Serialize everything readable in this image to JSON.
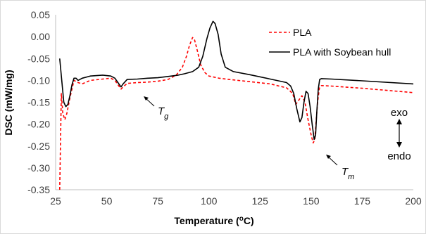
{
  "chart_data": {
    "type": "line",
    "title": "",
    "xlabel": "Temperature (ᵒC)",
    "xlabel_main": "Temperature (",
    "xlabel_sup": "o",
    "xlabel_tail": "C)",
    "ylabel": "DSC (mW/mg)",
    "xlim": [
      25,
      200
    ],
    "ylim": [
      -0.35,
      0.05
    ],
    "x_ticks": [
      "25",
      "50",
      "75",
      "100",
      "125",
      "150",
      "175",
      "200"
    ],
    "y_ticks": [
      "0.05",
      "0.00",
      "-0.05",
      "-0.10",
      "-0.15",
      "-0.20",
      "-0.25",
      "-0.30",
      "-0.35"
    ],
    "grid": false,
    "legend_position": "top-right",
    "series": [
      {
        "name": "PLA",
        "color": "#ff0000",
        "style": "dashed",
        "x": [
          27,
          27.8,
          28.5,
          29.5,
          30.5,
          32,
          34,
          36,
          38,
          42,
          48,
          52,
          54,
          55.5,
          57,
          58,
          60,
          65,
          70,
          75,
          80,
          84,
          87,
          89,
          90.5,
          92,
          93,
          94.5,
          96,
          98,
          100,
          105,
          110,
          120,
          130,
          138,
          141,
          142.5,
          144,
          145.5,
          147,
          148.5,
          150,
          151,
          151.8,
          152.5,
          153.2,
          154,
          155,
          160,
          175,
          200
        ],
        "y": [
          -0.35,
          -0.13,
          -0.175,
          -0.19,
          -0.175,
          -0.14,
          -0.1,
          -0.105,
          -0.108,
          -0.1,
          -0.097,
          -0.095,
          -0.1,
          -0.11,
          -0.12,
          -0.115,
          -0.107,
          -0.105,
          -0.104,
          -0.102,
          -0.098,
          -0.088,
          -0.07,
          -0.045,
          -0.02,
          -0.002,
          -0.008,
          -0.035,
          -0.065,
          -0.082,
          -0.09,
          -0.095,
          -0.098,
          -0.103,
          -0.108,
          -0.117,
          -0.13,
          -0.155,
          -0.145,
          -0.135,
          -0.15,
          -0.19,
          -0.225,
          -0.243,
          -0.235,
          -0.19,
          -0.15,
          -0.118,
          -0.112,
          -0.113,
          -0.118,
          -0.128
        ]
      },
      {
        "name": "PLA with Soybean hull",
        "color": "#000000",
        "style": "solid",
        "x": [
          27,
          28,
          29,
          30,
          31,
          32,
          33,
          34,
          35,
          36,
          38,
          42,
          48,
          52,
          54,
          55.5,
          57,
          58,
          60,
          65,
          70,
          75,
          80,
          85,
          88,
          92,
          95,
          97,
          99,
          100.5,
          102,
          103,
          104.5,
          106,
          108,
          112,
          120,
          130,
          138,
          140,
          141.5,
          143,
          144.5,
          145.5,
          146.5,
          147.5,
          148.5,
          149.5,
          150.5,
          151.5,
          152.2,
          152.8,
          153.5,
          154.2,
          155,
          160,
          175,
          200
        ],
        "y": [
          -0.05,
          -0.1,
          -0.15,
          -0.16,
          -0.155,
          -0.135,
          -0.11,
          -0.095,
          -0.095,
          -0.1,
          -0.095,
          -0.09,
          -0.088,
          -0.09,
          -0.095,
          -0.105,
          -0.115,
          -0.108,
          -0.098,
          -0.097,
          -0.095,
          -0.094,
          -0.091,
          -0.088,
          -0.085,
          -0.08,
          -0.07,
          -0.045,
          -0.005,
          0.02,
          0.035,
          0.03,
          0.005,
          -0.04,
          -0.07,
          -0.08,
          -0.087,
          -0.097,
          -0.105,
          -0.113,
          -0.13,
          -0.165,
          -0.195,
          -0.185,
          -0.15,
          -0.125,
          -0.13,
          -0.16,
          -0.2,
          -0.235,
          -0.225,
          -0.17,
          -0.12,
          -0.098,
          -0.096,
          -0.097,
          -0.101,
          -0.108
        ]
      }
    ],
    "annotations": [
      {
        "main": "T",
        "sub": "g"
      },
      {
        "main": "T",
        "sub": "m"
      },
      {
        "label": "exo"
      },
      {
        "label": "endo"
      }
    ]
  }
}
